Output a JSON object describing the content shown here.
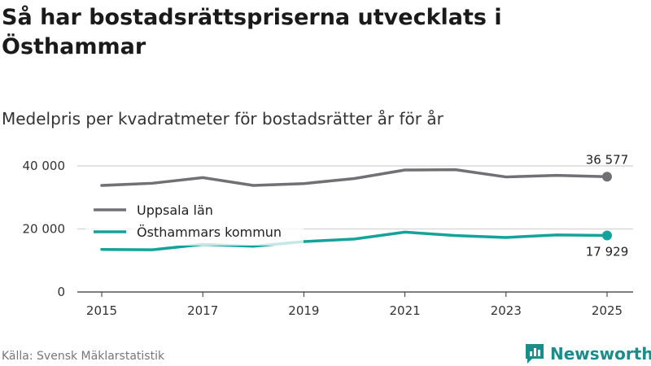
{
  "header": {
    "title": "Så har bostadsrättspriserna utvecklats i Östhammar",
    "subtitle": "Medelpris per kvadratmeter för bostadsrätter år för år"
  },
  "footer": {
    "source": "Källa: Svensk Mäklarstatistik",
    "brand": "Newsworthy"
  },
  "colors": {
    "uppsala": "#707075",
    "osthammar": "#13a39a",
    "grid": "#d9d9d9",
    "brand": "#1a8c8a"
  },
  "chart_data": {
    "type": "line",
    "title": "Medelpris per kvadratmeter för bostadsrätter år för år",
    "x": [
      2015,
      2016,
      2017,
      2018,
      2019,
      2020,
      2021,
      2022,
      2023,
      2024,
      2025
    ],
    "x_ticks": [
      "2015",
      "2017",
      "2019",
      "2021",
      "2023",
      "2025"
    ],
    "y_ticks": [
      {
        "value": 0,
        "label": "0"
      },
      {
        "value": 20000,
        "label": "20 000"
      },
      {
        "value": 40000,
        "label": "40 000"
      }
    ],
    "ylim": [
      0,
      40000
    ],
    "xlabel": "",
    "ylabel": "",
    "grid": true,
    "legend_position": "left",
    "series": [
      {
        "key": "uppsala",
        "name": "Uppsala län",
        "values": [
          33800,
          34500,
          36300,
          33800,
          34400,
          36000,
          38700,
          38800,
          36500,
          37000,
          36577
        ],
        "end_label": "36 577",
        "end_label_position": "above"
      },
      {
        "key": "osthammar",
        "name": "Östhammars kommun",
        "values": [
          13500,
          13400,
          15100,
          14500,
          16000,
          16800,
          19000,
          17900,
          17300,
          18100,
          17929
        ],
        "end_label": "17 929",
        "end_label_position": "below"
      }
    ]
  }
}
